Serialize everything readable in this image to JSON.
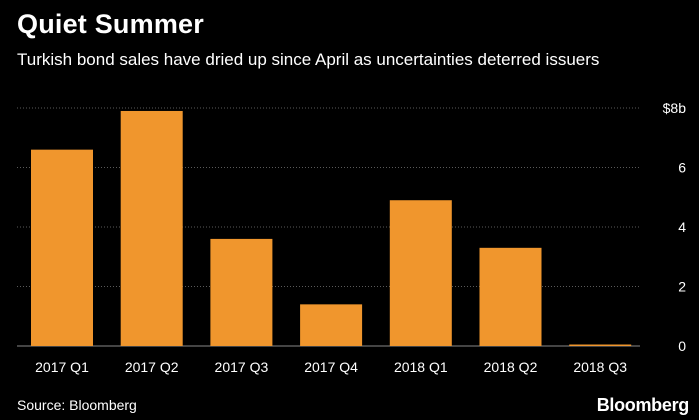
{
  "title": "Quiet Summer",
  "subtitle": "Turkish bond sales have dried up since April as uncertainties deterred issuers",
  "source": "Source: Bloomberg",
  "brand": "Bloomberg",
  "colors": {
    "bar": "#F0962D",
    "grid": "#5a5a5a",
    "background": "#000000",
    "text": "#ffffff"
  },
  "chart_data": {
    "type": "bar",
    "categories": [
      "2017 Q1",
      "2017 Q2",
      "2017 Q3",
      "2017 Q4",
      "2018 Q1",
      "2018 Q2",
      "2018 Q3"
    ],
    "values": [
      6.6,
      7.9,
      3.6,
      1.4,
      4.9,
      3.3,
      0.05
    ],
    "ylim": [
      0,
      8
    ],
    "yticks": [
      0,
      2,
      4,
      6,
      8
    ],
    "ytick_labels": [
      "0",
      "2",
      "4",
      "6",
      "$8b"
    ],
    "grid": true,
    "yaxis_position": "right"
  }
}
